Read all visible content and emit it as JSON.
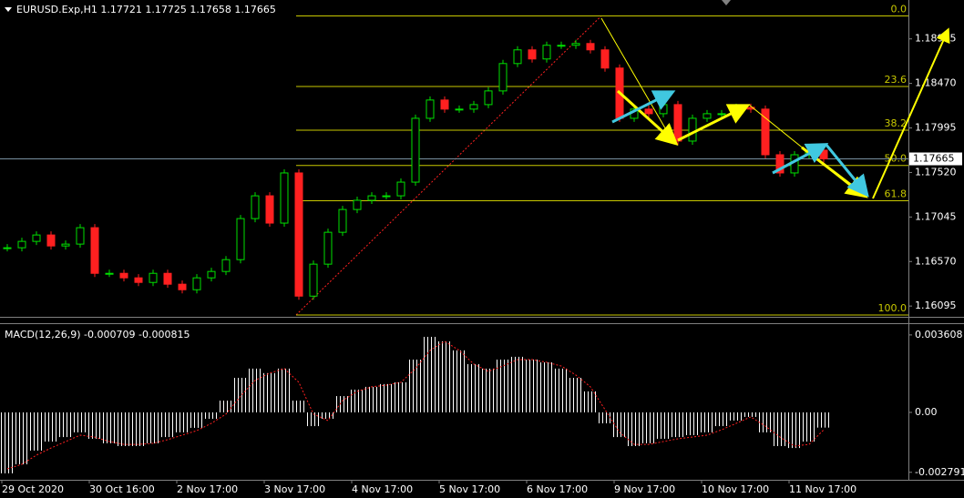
{
  "chart_data": [
    {
      "type": "candlestick",
      "symbol": "EURUSD.Exp,H1",
      "ohlc": [
        1.17721,
        1.17725,
        1.17658,
        1.17665
      ],
      "bid": 1.17665,
      "up_color": "#00e000",
      "down_color": "#ff2020",
      "close": [
        1.16717,
        1.16785,
        1.16853,
        1.16736,
        1.16756,
        1.16931,
        1.16444,
        1.16444,
        1.16396,
        1.16347,
        1.16444,
        1.16328,
        1.16269,
        1.16396,
        1.16464,
        1.1659,
        1.17028,
        1.17271,
        1.1698,
        1.17515,
        1.16201,
        1.16542,
        1.16882,
        1.17125,
        1.17223,
        1.17271,
        1.17271,
        1.17417,
        1.18098,
        1.18293,
        1.18196,
        1.18196,
        1.18244,
        1.1839,
        1.18682,
        1.18828,
        1.18731,
        1.18877,
        1.18877,
        1.18896,
        1.18828,
        1.18634,
        1.18098,
        1.18196,
        1.18147,
        1.18244,
        1.17855,
        1.18098,
        1.18147,
        1.18147,
        1.18215,
        1.18196,
        1.17709,
        1.17515,
        1.17709,
        1.17758,
        1.17665
      ],
      "ylim": [
        1.1598,
        1.1936
      ],
      "yticks": [
        1.18945,
        {
          "value": 1.1847,
          "label": "1.18470"
        },
        1.17995,
        {
          "value": 1.1752,
          "label": "1.17520"
        },
        1.17045,
        {
          "value": 1.1657,
          "label": "1.16570"
        },
        1.16095
      ],
      "xtick_labels": [
        "29 Oct 2020",
        "30 Oct 16:00",
        "2 Nov 17:00",
        "3 Nov 17:00",
        "4 Nov 17:00",
        "5 Nov 17:00",
        "6 Nov 17:00",
        "9 Nov 17:00",
        "10 Nov 17:00",
        "11 Nov 17:00"
      ],
      "fibo": {
        "high": 1.1919,
        "low": 1.16,
        "color": "#c8c800",
        "levels": [
          {
            "value": 0,
            "label": "0.0"
          },
          23.6,
          38.2,
          {
            "value": 50,
            "label": "50.0"
          },
          61.8,
          {
            "value": 100,
            "label": "100.0"
          }
        ]
      }
    },
    {
      "type": "macd",
      "title": "MACD(12,26,9)",
      "latest": [
        -0.000709,
        -0.000815
      ],
      "ylim": [
        -0.00314,
        0.00407
      ],
      "yticks": [
        0.003608,
        {
          "value": 0,
          "label": "0.00"
        },
        -0.002791
      ],
      "histogram_color": "#ffffff",
      "signal_color": "#ff2020",
      "histogram": [
        -0.00284,
        -0.00242,
        -0.00178,
        -0.00136,
        -0.00115,
        -0.00093,
        -0.00123,
        -0.00144,
        -0.00157,
        -0.00157,
        -0.00144,
        -0.00115,
        -0.00093,
        -0.00072,
        -0.0003,
        0.00055,
        0.00161,
        0.00204,
        0.00183,
        0.00204,
        0.00055,
        -0.00064,
        -0.0003,
        0.00076,
        0.00106,
        0.00119,
        0.00132,
        0.0014,
        0.00246,
        0.00352,
        0.00331,
        0.00289,
        0.00225,
        0.00204,
        0.00246,
        0.00259,
        0.00246,
        0.00233,
        0.00204,
        0.00161,
        0.00098,
        -0.00051,
        -0.00115,
        -0.00157,
        -0.00144,
        -0.00123,
        -0.00115,
        -0.00106,
        -0.00093,
        -0.00064,
        -0.00038,
        -0.00021,
        -0.00093,
        -0.00157,
        -0.00166,
        -0.00136,
        -0.000709
      ],
      "signal": [
        -0.00263,
        -0.00242,
        -0.00199,
        -0.00166,
        -0.00136,
        -0.00106,
        -0.00115,
        -0.00136,
        -0.00149,
        -0.00149,
        -0.00144,
        -0.00127,
        -0.00106,
        -0.00085,
        -0.00051,
        -8e-05,
        0.00076,
        0.00149,
        0.00183,
        0.00204,
        0.0014,
        -8e-05,
        -0.00038,
        0.00055,
        0.00098,
        0.00119,
        0.00127,
        0.0014,
        0.00204,
        0.00289,
        0.00331,
        0.00289,
        0.00225,
        0.00191,
        0.00216,
        0.00246,
        0.00246,
        0.00233,
        0.00216,
        0.00174,
        0.00119,
        0.00013,
        -0.00093,
        -0.00149,
        -0.00149,
        -0.00136,
        -0.00123,
        -0.00115,
        -0.00106,
        -0.00081,
        -0.00051,
        -0.00021,
        -0.00064,
        -0.00115,
        -0.00157,
        -0.00149,
        -0.000815
      ]
    }
  ]
}
